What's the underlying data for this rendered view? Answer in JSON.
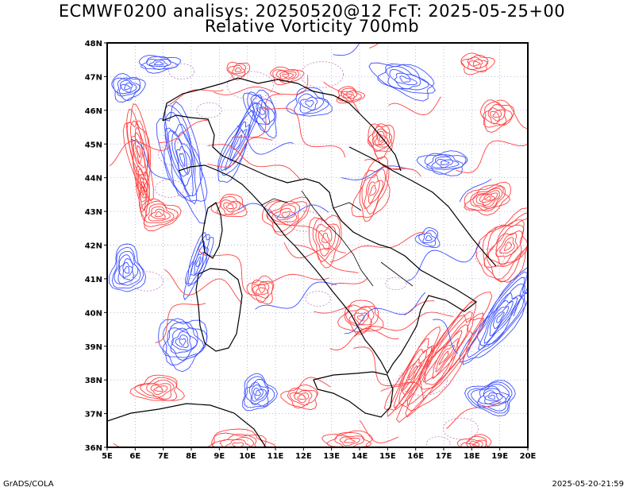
{
  "header": {
    "title_line1": "ECMWF0200 analisys: 20250520@12 FcT: 2025-05-25+00",
    "title_line2": "Relative Vorticity 700mb"
  },
  "footer": {
    "left": "GrADS/COLA",
    "right": "2025-05-20-21:59"
  },
  "map": {
    "lon_range": [
      5,
      20
    ],
    "lat_range": [
      36,
      48
    ],
    "x_ticks": [
      "5E",
      "6E",
      "7E",
      "8E",
      "9E",
      "10E",
      "11E",
      "12E",
      "13E",
      "14E",
      "15E",
      "16E",
      "17E",
      "18E",
      "19E",
      "20E"
    ],
    "y_ticks": [
      "36N",
      "37N",
      "38N",
      "39N",
      "40N",
      "41N",
      "42N",
      "43N",
      "44N",
      "45N",
      "46N",
      "47N",
      "48N"
    ],
    "colors": {
      "positive_vorticity": "#ff4040",
      "negative_vorticity": "#3c50ff",
      "coastline": "#000000",
      "zero_contour": "#c080c0"
    }
  }
}
